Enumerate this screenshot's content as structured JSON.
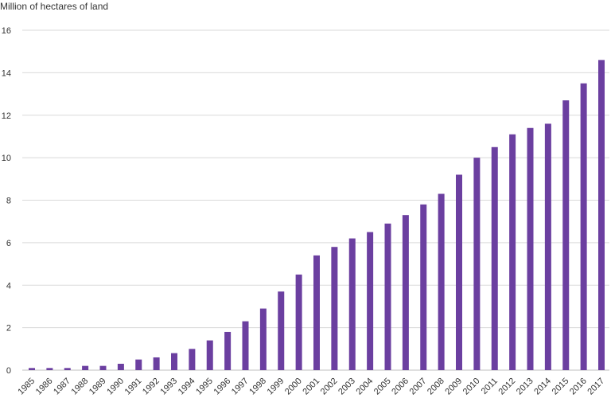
{
  "chart_data": {
    "type": "bar",
    "ylabel": "Million of hectares of land",
    "xlabel": "",
    "title": "",
    "ylim": [
      0,
      16
    ],
    "yticks": [
      0,
      2,
      4,
      6,
      8,
      10,
      12,
      14,
      16
    ],
    "grid": true,
    "bar_color": "#6b3fa0",
    "categories": [
      "1985",
      "1986",
      "1987",
      "1988",
      "1989",
      "1990",
      "1991",
      "1992",
      "1993",
      "1994",
      "1995",
      "1996",
      "1997",
      "1998",
      "1999",
      "2000",
      "2001",
      "2002",
      "2003",
      "2004",
      "2005",
      "2006",
      "2007",
      "2008",
      "2009",
      "2010",
      "2011",
      "2012",
      "2013",
      "2014",
      "2015",
      "2016",
      "2017"
    ],
    "values": [
      0.1,
      0.1,
      0.1,
      0.2,
      0.2,
      0.3,
      0.5,
      0.6,
      0.8,
      1.0,
      1.4,
      1.8,
      2.3,
      2.9,
      3.7,
      4.5,
      5.4,
      5.8,
      6.2,
      6.5,
      6.9,
      7.3,
      7.8,
      8.3,
      9.2,
      10.0,
      10.5,
      11.1,
      11.4,
      11.6,
      12.7,
      13.5,
      14.6
    ]
  }
}
